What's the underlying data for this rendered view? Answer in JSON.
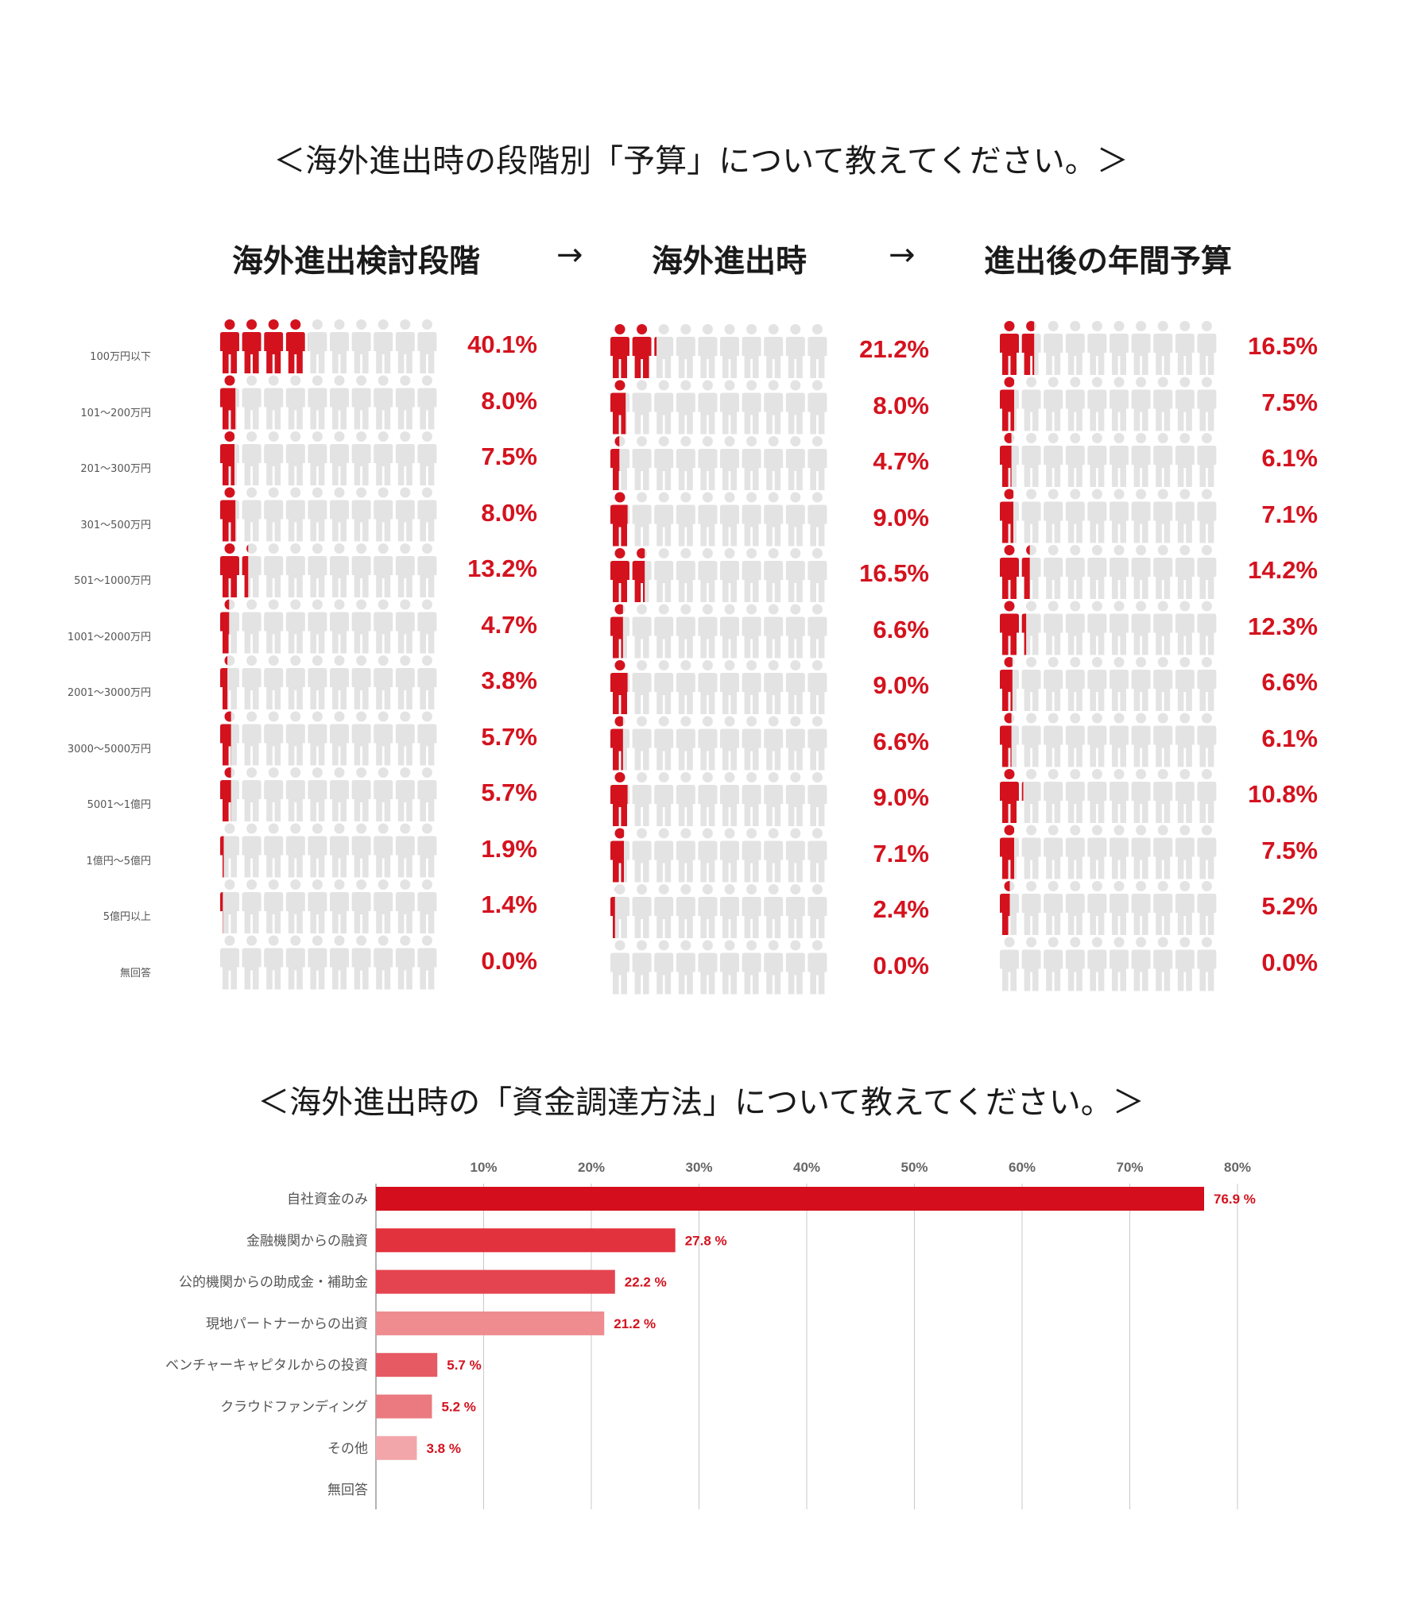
{
  "titles": {
    "budget": "＜海外進出時の段階別「予算」について教えてください。＞",
    "funding": "＜海外進出時の「資金調達方法」について教えてください。＞"
  },
  "stages": [
    "海外進出検討段階",
    "海外進出時",
    "進出後の年間予算"
  ],
  "arrow": "→",
  "colors": {
    "accent": "#d4121e",
    "inactive": "#e3e3e3",
    "grid": "#c8c8c8"
  },
  "chart_data": [
    {
      "type": "pictograph",
      "icon": "person-icon",
      "units_per_row": 10,
      "categories": [
        "100万円以下",
        "101～200万円",
        "201～300万円",
        "301～500万円",
        "501～1000万円",
        "1001～2000万円",
        "2001～3000万円",
        "3000～5000万円",
        "5001～1億円",
        "1億円～5億円",
        "5億円以上",
        "無回答"
      ],
      "series": [
        {
          "name": "海外進出検討段階",
          "values": [
            40.1,
            8.0,
            7.5,
            8.0,
            13.2,
            4.7,
            3.8,
            5.7,
            5.7,
            1.9,
            1.4,
            0.0
          ],
          "labels": [
            "40.1%",
            "8.0%",
            "7.5%",
            "8.0%",
            "13.2%",
            "4.7%",
            "3.8%",
            "5.7%",
            "5.7%",
            "1.9%",
            "1.4%",
            "0.0%"
          ]
        },
        {
          "name": "海外進出時",
          "values": [
            21.2,
            8.0,
            4.7,
            9.0,
            16.5,
            6.6,
            9.0,
            6.6,
            9.0,
            7.1,
            2.4,
            0.0
          ],
          "labels": [
            "21.2%",
            "8.0%",
            "4.7%",
            "9.0%",
            "16.5%",
            "6.6%",
            "9.0%",
            "6.6%",
            "9.0%",
            "7.1%",
            "2.4%",
            "0.0%"
          ]
        },
        {
          "name": "進出後の年間予算",
          "values": [
            16.5,
            7.5,
            6.1,
            7.1,
            14.2,
            12.3,
            6.6,
            6.1,
            10.8,
            7.5,
            5.2,
            0.0
          ],
          "labels": [
            "16.5%",
            "7.5%",
            "6.1%",
            "7.1%",
            "14.2%",
            "12.3%",
            "6.6%",
            "6.1%",
            "10.8%",
            "7.5%",
            "5.2%",
            "0.0%"
          ]
        }
      ]
    },
    {
      "type": "bar",
      "orientation": "horizontal",
      "categories": [
        "自社資金のみ",
        "金融機関からの融資",
        "公的機関からの助成金・補助金",
        "現地パートナーからの出資",
        "ベンチャーキャピタルからの投資",
        "クラウドファンディング",
        "その他",
        "無回答"
      ],
      "values": [
        76.9,
        27.8,
        22.2,
        21.2,
        5.7,
        5.2,
        3.8,
        0
      ],
      "value_labels": [
        "76.9 %",
        "27.8 %",
        "22.2 %",
        "21.2 %",
        "5.7 %",
        "5.2 %",
        "3.8 %",
        ""
      ],
      "bar_colors": [
        "#d40e1c",
        "#e2323d",
        "#e4444f",
        "#ee8c90",
        "#e55a63",
        "#ea7a80",
        "#f2a6aa",
        "#f2a6aa"
      ],
      "xlim": [
        0,
        80
      ],
      "xticks": [
        10,
        20,
        30,
        40,
        50,
        60,
        70,
        80
      ],
      "xtick_labels": [
        "10%",
        "20%",
        "30%",
        "40%",
        "50%",
        "60%",
        "70%",
        "80%"
      ],
      "grid": true
    }
  ]
}
